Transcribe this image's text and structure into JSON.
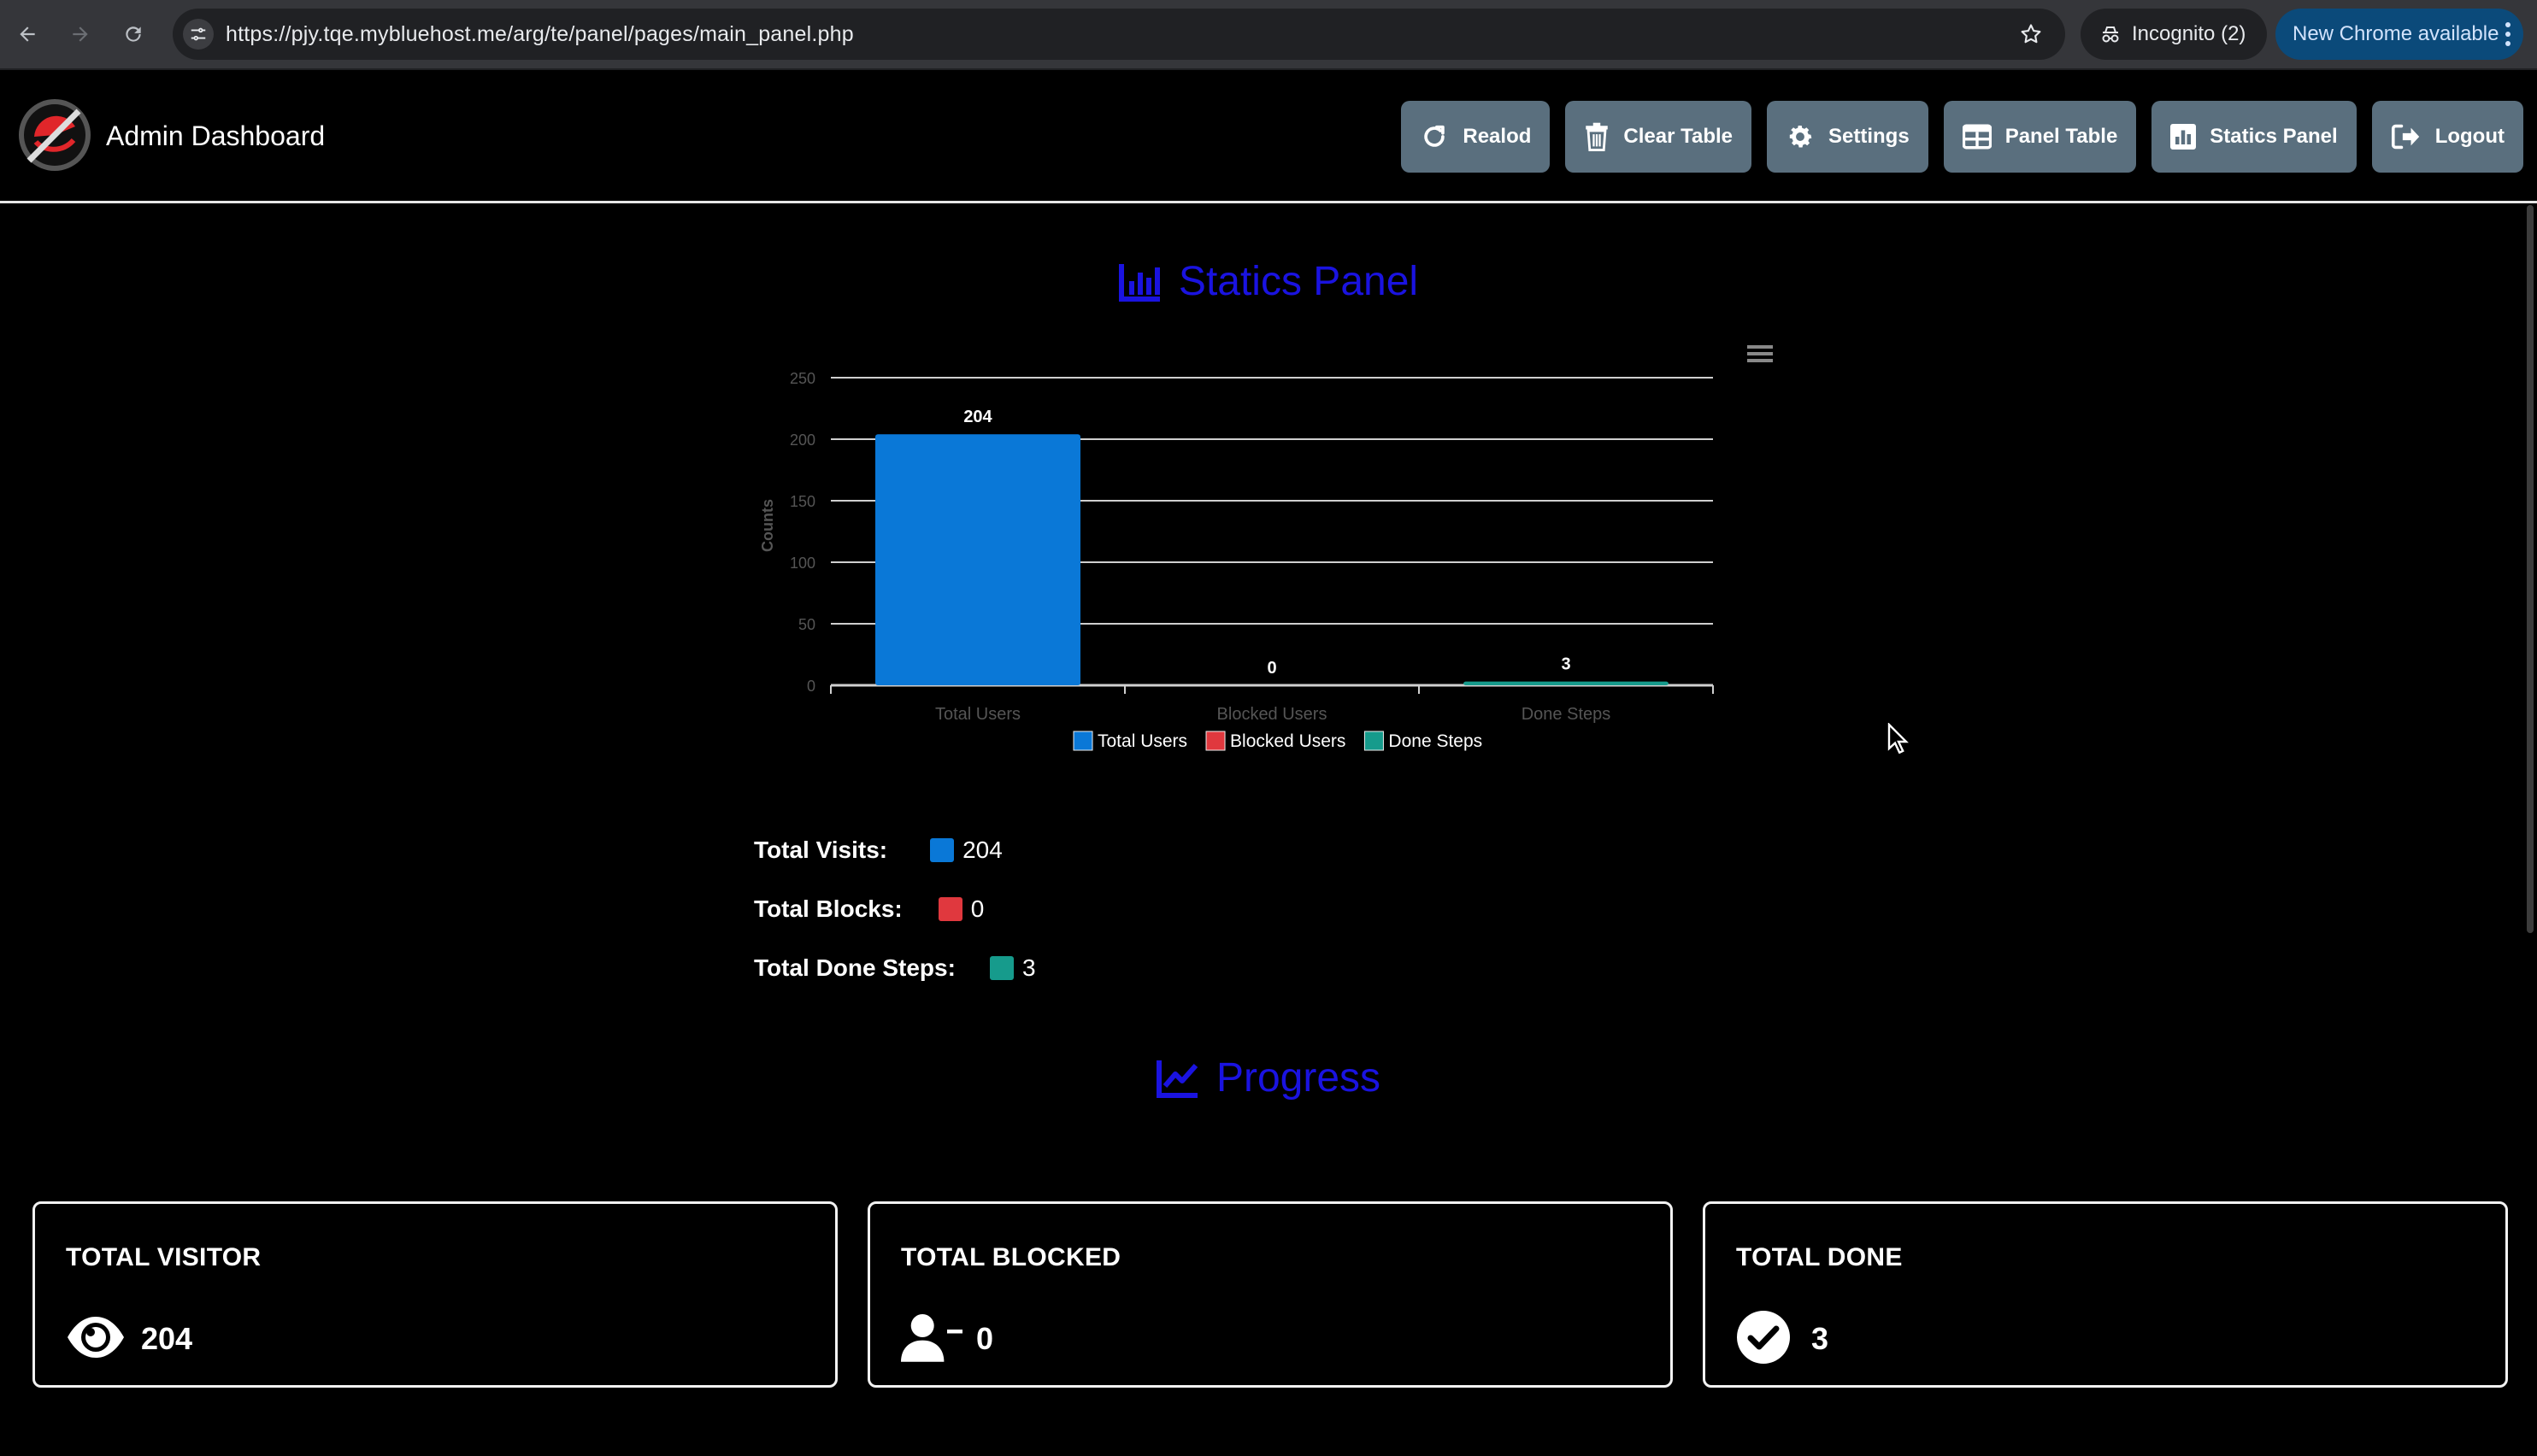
{
  "browser": {
    "url": "https://pjy.tqe.mybluehost.me/arg/te/panel/pages/main_panel.php",
    "incognito_label": "Incognito (2)",
    "update_label": "New Chrome available"
  },
  "header": {
    "brand": "Admin Dashboard",
    "buttons": {
      "reload": "Realod",
      "clear": "Clear Table",
      "settings": "Settings",
      "panel_table": "Panel Table",
      "statics": "Statics Panel",
      "logout": "Logout"
    }
  },
  "statics": {
    "title": "Statics Panel"
  },
  "chart_data": {
    "type": "bar",
    "categories": [
      "Total Users",
      "Blocked Users",
      "Done Steps"
    ],
    "values": [
      204,
      0,
      3
    ],
    "colors": [
      "#0a78d7",
      "#e0383e",
      "#169b8c"
    ],
    "ylabel": "Counts",
    "ylim": [
      0,
      250
    ],
    "yticks": [
      0,
      50,
      100,
      150,
      200,
      250
    ],
    "data_labels": [
      "204",
      "0",
      "3"
    ],
    "legend": [
      "Total Users",
      "Blocked Users",
      "Done Steps"
    ],
    "legend_position": "bottom",
    "grid": true
  },
  "stats": {
    "visits_label": "Total Visits:",
    "visits_value": "204",
    "blocks_label": "Total Blocks:",
    "blocks_value": "0",
    "done_label": "Total Done Steps:",
    "done_value": "3"
  },
  "progress": {
    "title": "Progress",
    "cards": [
      {
        "title": "TOTAL VISITOR",
        "value": "204",
        "icon": "eye-icon"
      },
      {
        "title": "TOTAL BLOCKED",
        "value": "0",
        "icon": "user-minus-icon"
      },
      {
        "title": "TOTAL DONE",
        "value": "3",
        "icon": "check-circle-icon"
      }
    ]
  }
}
